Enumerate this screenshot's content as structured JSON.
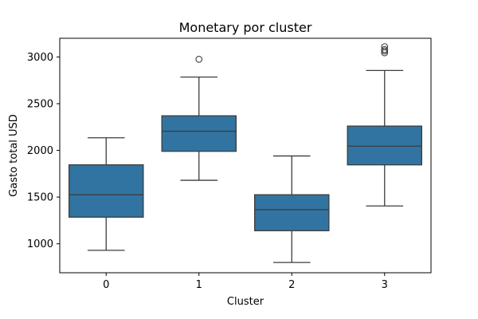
{
  "chart_data": {
    "type": "box",
    "title": "Monetary por cluster",
    "xlabel": "Cluster",
    "ylabel": "Gasto total USD",
    "categories": [
      "0",
      "1",
      "2",
      "3"
    ],
    "ylim": [
      690,
      3200
    ],
    "yticks": [
      1000,
      1500,
      2000,
      2500,
      3000
    ],
    "grid": false,
    "legend": "none",
    "box_color": "#3274a1",
    "line_color": "#3d3d3d",
    "boxes": [
      {
        "category": "0",
        "whisker_low": 930,
        "q1": 1285,
        "median": 1525,
        "q3": 1845,
        "whisker_high": 2135,
        "outliers": []
      },
      {
        "category": "1",
        "whisker_low": 1680,
        "q1": 1990,
        "median": 2205,
        "q3": 2370,
        "whisker_high": 2785,
        "outliers": [
          2975
        ]
      },
      {
        "category": "2",
        "whisker_low": 800,
        "q1": 1140,
        "median": 1365,
        "q3": 1525,
        "whisker_high": 1940,
        "outliers": []
      },
      {
        "category": "3",
        "whisker_low": 1405,
        "q1": 1845,
        "median": 2045,
        "q3": 2260,
        "whisker_high": 2855,
        "outliers": [
          3045,
          3065,
          3080,
          3110
        ]
      }
    ]
  }
}
